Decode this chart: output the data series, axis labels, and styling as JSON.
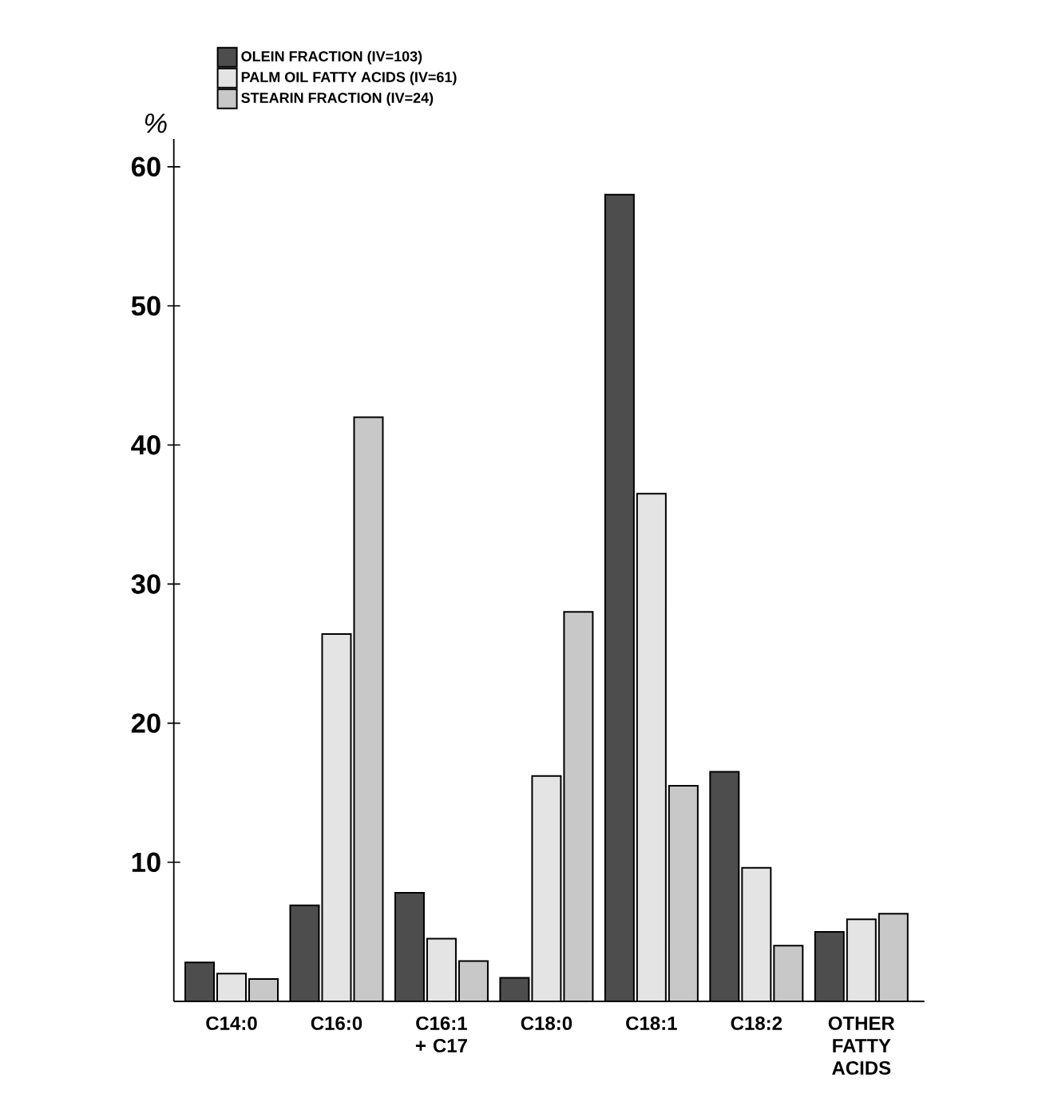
{
  "chart_data": {
    "type": "bar",
    "ylabel": "%",
    "categories": [
      "C14:0",
      "C16:0",
      "C16:1 + C17",
      "C18:0",
      "C18:1",
      "C18:2",
      "OTHER FATTY ACIDS"
    ],
    "series": [
      {
        "name": "OLEIN FRACTION (IV=103)",
        "color": "#4d4d4d",
        "values": [
          2.8,
          6.9,
          7.8,
          1.7,
          58,
          16.5,
          5.0
        ]
      },
      {
        "name": "PALM OIL FATTY ACIDS (IV=61)",
        "color": "#e4e4e4",
        "values": [
          2.0,
          26.4,
          4.5,
          16.2,
          36.5,
          9.6,
          5.9
        ]
      },
      {
        "name": "STEARIN FRACTION (IV=24)",
        "color": "#c8c8c8",
        "values": [
          1.6,
          42.0,
          2.9,
          28.0,
          15.5,
          4.0,
          6.3
        ]
      }
    ],
    "ylim": [
      0,
      62
    ],
    "yticks": [
      10,
      20,
      30,
      40,
      50,
      60
    ],
    "legend": "top left",
    "grid": false
  }
}
